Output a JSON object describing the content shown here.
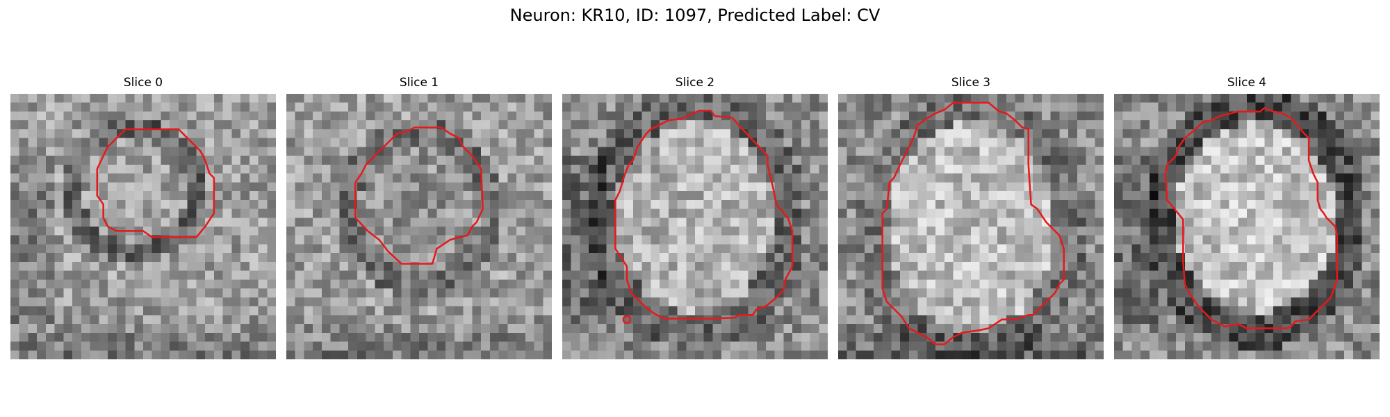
{
  "figure": {
    "title": "Neuron: KR10, ID: 1097, Predicted Label: CV"
  },
  "colors": {
    "contour": "#e41a1c",
    "background": "#ffffff",
    "colormap": "gray"
  },
  "panels": [
    {
      "title": "Slice 0"
    },
    {
      "title": "Slice 1"
    },
    {
      "title": "Slice 2"
    },
    {
      "title": "Slice 3"
    },
    {
      "title": "Slice 4"
    }
  ]
}
